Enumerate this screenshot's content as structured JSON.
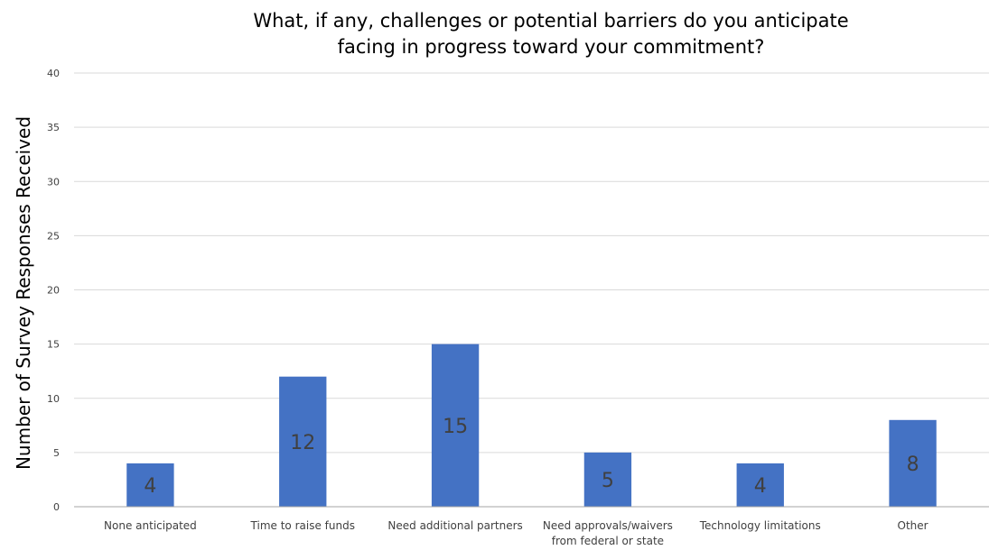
{
  "chart_data": {
    "type": "bar",
    "title": "What, if any, challenges or potential barriers do you anticipate facing in progress toward your commitment?",
    "title_lines": [
      "What, if any, challenges or potential barriers do you anticipate",
      "facing in progress toward your commitment?"
    ],
    "xlabel": "",
    "ylabel": "Number of Survey Responses Received",
    "ylim": [
      0,
      40
    ],
    "yticks": [
      0,
      5,
      10,
      15,
      20,
      25,
      30,
      35,
      40
    ],
    "grid": true,
    "legend": "none",
    "categories": [
      "None anticipated",
      "Time to raise funds",
      "Need additional partners",
      "Need approvals/waivers from federal or state",
      "Technology limitations",
      "Other"
    ],
    "category_label_lines": [
      [
        "None anticipated"
      ],
      [
        "Time to raise funds"
      ],
      [
        "Need additional partners"
      ],
      [
        "Need approvals/waivers",
        "from federal or state"
      ],
      [
        "Technology limitations"
      ],
      [
        "Other"
      ]
    ],
    "values": [
      4,
      12,
      15,
      5,
      4,
      8
    ],
    "data_labels": [
      "4",
      "12",
      "15",
      "5",
      "4",
      "8"
    ],
    "colors": {
      "bar": "#4472C4",
      "grid": "#d9d9d9",
      "axis": "#a6a6a6",
      "text": "#404040",
      "data_label": "#404040"
    }
  }
}
